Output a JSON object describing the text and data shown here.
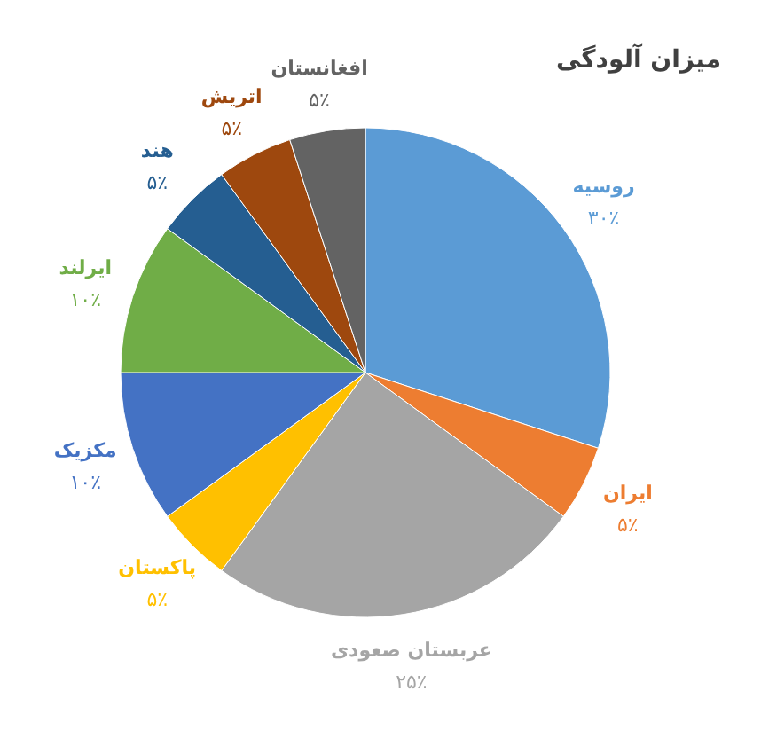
{
  "chart_data": {
    "type": "pie",
    "title": "میزان آلودگی",
    "categories": [
      "روسیه",
      "ایران",
      "عربستان صعودی",
      "پاکستان",
      "مکزیک",
      "ایرلند",
      "هند",
      "اتریش",
      "افغانستان"
    ],
    "values": [
      30,
      5,
      25,
      5,
      10,
      10,
      5,
      5,
      5
    ],
    "value_labels": [
      "۳۰٪",
      "۵٪",
      "۲۵٪",
      "۵٪",
      "۱۰٪",
      "۱۰٪",
      "۵٪",
      "۵٪",
      "۵٪"
    ],
    "colors": [
      "#5b9bd5",
      "#ed7d31",
      "#a5a5a5",
      "#ffc000",
      "#4472c4",
      "#70ad47",
      "#255e91",
      "#9e480e",
      "#636363"
    ]
  }
}
